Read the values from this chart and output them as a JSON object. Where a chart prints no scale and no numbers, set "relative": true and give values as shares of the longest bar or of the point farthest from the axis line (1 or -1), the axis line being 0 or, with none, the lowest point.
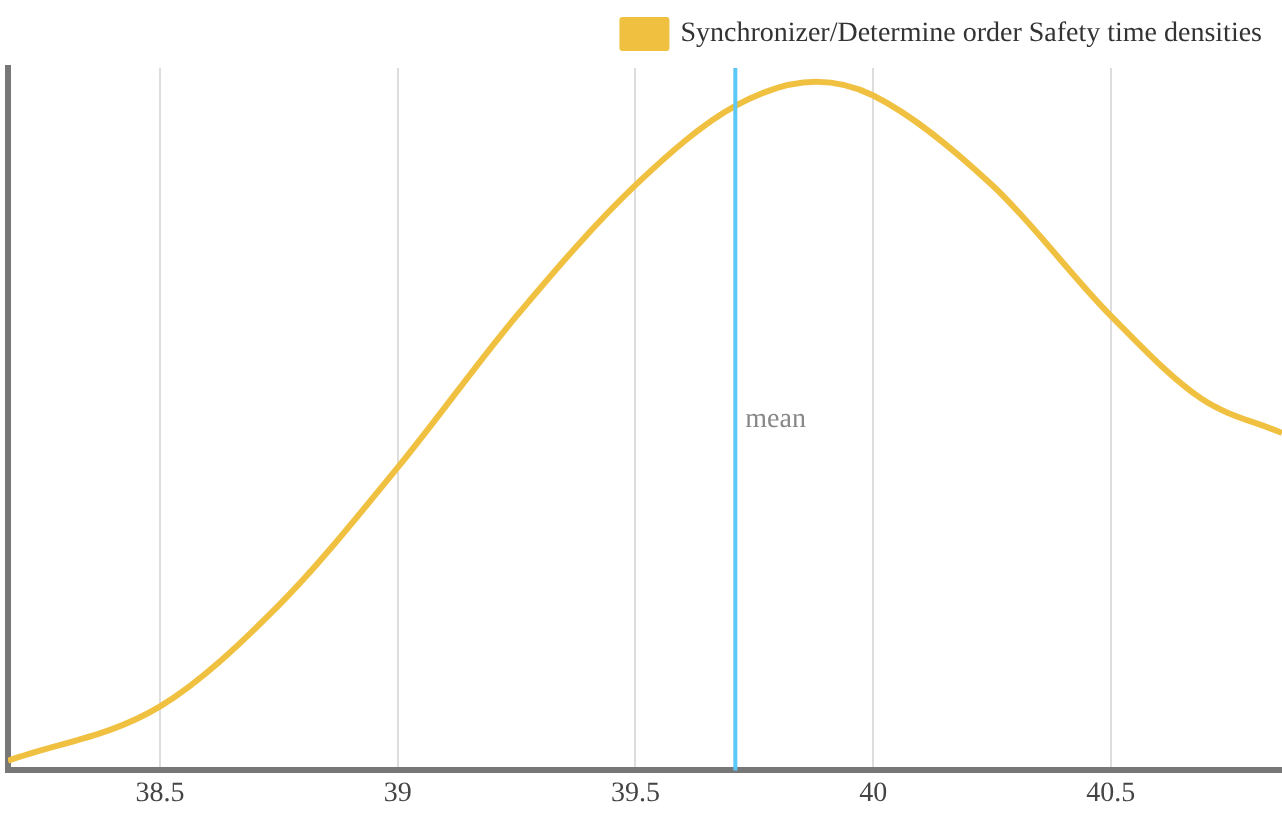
{
  "chart_data": {
    "type": "line",
    "relative": true,
    "x": [
      38.18,
      38.5,
      38.75,
      39,
      39.25,
      39.5,
      39.71,
      39.88,
      40,
      40.25,
      40.5,
      40.69,
      40.86
    ],
    "series": [
      {
        "name": "Synchronizer/Determine order Safety time densities",
        "color": "#f0c040",
        "values": [
          0.014,
          0.093,
          0.24,
          0.44,
          0.66,
          0.85,
          0.965,
          1,
          0.98,
          0.85,
          0.66,
          0.54,
          0.49
        ]
      }
    ],
    "xlim": [
      38.18,
      40.86
    ],
    "xticks": [
      38.5,
      39,
      39.5,
      40,
      40.5
    ],
    "ref_lines": [
      {
        "axis": "x",
        "value": 39.71,
        "label": "mean",
        "color": "#5bc8f5"
      }
    ],
    "grid": "x",
    "legend": "top right",
    "marker": "none",
    "line_style": "solid"
  }
}
